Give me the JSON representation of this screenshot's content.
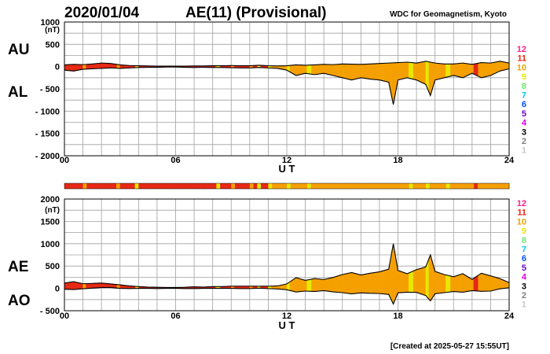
{
  "header": {
    "date": "2020/01/04",
    "title": "AE(11) (Provisional)",
    "org": "WDC for Geomagnetism, Kyoto"
  },
  "footer": {
    "created": "[Created at 2025-05-27 15:55UT]"
  },
  "colors": {
    "grid": "#a0a0a0",
    "bar_default": "#f5a000",
    "counts": {
      "1": "#c8c8c8",
      "2": "#7f7f7f",
      "3": "#000000",
      "4": "#e000e0",
      "5": "#6a00c8",
      "6": "#0050ff",
      "7": "#00c8e8",
      "8": "#6ee66e",
      "9": "#e8e800",
      "10": "#f5a000",
      "11": "#e62814",
      "12": "#ff1e8c"
    }
  },
  "legend_labels": [
    "12",
    "11",
    "10",
    "9",
    "8",
    "7",
    "6",
    "5",
    "4",
    "3",
    "2",
    "1"
  ],
  "chart_data": [
    {
      "id": "au_al",
      "type": "area",
      "side_labels": [
        "AU",
        "AL"
      ],
      "unit": "(nT)",
      "ylim": [
        -2000,
        1000
      ],
      "yticks": [
        1000,
        500,
        0,
        -500,
        -1000,
        -1500,
        -2000
      ],
      "ytick_labels": [
        "1000",
        "500",
        "0",
        "- 500",
        "- 1000",
        "- 1500",
        "- 2000"
      ],
      "xlim": [
        0,
        24
      ],
      "xticks": [
        0,
        6,
        12,
        18,
        24
      ],
      "xtick_labels": [
        "00",
        "06",
        "12",
        "18",
        "24"
      ],
      "xlabel": "U T",
      "grid": true,
      "series": [
        {
          "name": "AU",
          "x": [
            0,
            0.5,
            1,
            1.5,
            2,
            2.5,
            3,
            3.5,
            4,
            4.5,
            5,
            5.5,
            6,
            6.5,
            7,
            7.5,
            8,
            8.5,
            9,
            9.5,
            10,
            10.5,
            11,
            11.5,
            12,
            12.5,
            13,
            13.5,
            14,
            14.5,
            15,
            15.5,
            16,
            16.5,
            17,
            17.5,
            18,
            18.5,
            19,
            19.5,
            20,
            20.5,
            21,
            21.5,
            22,
            22.5,
            23,
            23.5,
            24
          ],
          "values": [
            40,
            50,
            45,
            60,
            80,
            70,
            40,
            25,
            20,
            15,
            10,
            10,
            10,
            10,
            15,
            15,
            20,
            20,
            25,
            20,
            20,
            30,
            20,
            15,
            20,
            40,
            30,
            40,
            50,
            45,
            60,
            55,
            50,
            60,
            70,
            80,
            90,
            100,
            80,
            120,
            80,
            60,
            60,
            80,
            50,
            90,
            80,
            120,
            80
          ]
        },
        {
          "name": "AL",
          "x": [
            0,
            0.5,
            1,
            1.5,
            2,
            2.5,
            3,
            3.5,
            4,
            4.5,
            5,
            5.5,
            6,
            6.5,
            7,
            7.5,
            8,
            8.5,
            9,
            9.5,
            10,
            10.5,
            11,
            11.5,
            12,
            12.5,
            13,
            13.5,
            14,
            14.5,
            15,
            15.5,
            16,
            16.5,
            17,
            17.5,
            17.75,
            18,
            18.5,
            19,
            19.5,
            19.75,
            20,
            20.5,
            21,
            21.5,
            22,
            22.5,
            23,
            23.5,
            24
          ],
          "values": [
            -80,
            -100,
            -60,
            -50,
            -40,
            -30,
            -40,
            -30,
            -20,
            -15,
            -15,
            -10,
            -10,
            -15,
            -20,
            -15,
            -20,
            -20,
            -25,
            -30,
            -30,
            -20,
            -30,
            -40,
            -80,
            -200,
            -150,
            -180,
            -150,
            -200,
            -250,
            -300,
            -250,
            -280,
            -300,
            -350,
            -850,
            -300,
            -250,
            -300,
            -400,
            -650,
            -300,
            -250,
            -200,
            -250,
            -150,
            -250,
            -200,
            -100,
            -50
          ]
        }
      ]
    },
    {
      "id": "ae_ao",
      "type": "area",
      "side_labels": [
        "AE",
        "AO"
      ],
      "unit": "(nT)",
      "ylim": [
        -500,
        2000
      ],
      "yticks": [
        2000,
        1500,
        1000,
        500,
        0,
        -500
      ],
      "ytick_labels": [
        "2000",
        "1500",
        "1000",
        "500",
        "0",
        "- 500"
      ],
      "xlim": [
        0,
        24
      ],
      "xticks": [
        0,
        6,
        12,
        18,
        24
      ],
      "xtick_labels": [
        "00",
        "06",
        "12",
        "18",
        "24"
      ],
      "xlabel": "U T",
      "grid": true,
      "series": [
        {
          "name": "AE",
          "x": [
            0,
            0.5,
            1,
            1.5,
            2,
            2.5,
            3,
            3.5,
            4,
            4.5,
            5,
            5.5,
            6,
            6.5,
            7,
            7.5,
            8,
            8.5,
            9,
            9.5,
            10,
            10.5,
            11,
            11.5,
            12,
            12.5,
            13,
            13.5,
            14,
            14.5,
            15,
            15.5,
            16,
            16.5,
            17,
            17.5,
            17.75,
            18,
            18.5,
            19,
            19.5,
            19.75,
            20,
            20.5,
            21,
            21.5,
            22,
            22.5,
            23,
            23.5,
            24
          ],
          "values": [
            120,
            150,
            105,
            110,
            120,
            100,
            80,
            55,
            40,
            30,
            25,
            20,
            20,
            25,
            35,
            30,
            40,
            40,
            50,
            50,
            50,
            50,
            50,
            55,
            100,
            240,
            180,
            220,
            200,
            245,
            310,
            355,
            300,
            340,
            370,
            430,
            1000,
            400,
            330,
            420,
            480,
            750,
            380,
            310,
            260,
            330,
            200,
            340,
            280,
            220,
            130
          ]
        },
        {
          "name": "AO",
          "x": [
            0,
            0.5,
            1,
            1.5,
            2,
            2.5,
            3,
            3.5,
            4,
            4.5,
            5,
            5.5,
            6,
            6.5,
            7,
            7.5,
            8,
            8.5,
            9,
            9.5,
            10,
            10.5,
            11,
            11.5,
            12,
            12.5,
            13,
            13.5,
            14,
            14.5,
            15,
            15.5,
            16,
            16.5,
            17,
            17.5,
            17.75,
            18,
            18.5,
            19,
            19.5,
            19.75,
            20,
            20.5,
            21,
            21.5,
            22,
            22.5,
            23,
            23.5,
            24
          ],
          "values": [
            -20,
            -25,
            -8,
            5,
            20,
            20,
            0,
            -3,
            0,
            0,
            -3,
            0,
            0,
            -3,
            -3,
            0,
            0,
            0,
            0,
            -5,
            -5,
            5,
            -5,
            -13,
            -30,
            -80,
            -60,
            -70,
            -50,
            -78,
            -95,
            -123,
            -100,
            -110,
            -115,
            -135,
            -350,
            -100,
            -85,
            -90,
            -160,
            -280,
            -120,
            -95,
            -70,
            -85,
            -50,
            -65,
            -60,
            -10,
            15
          ]
        }
      ]
    }
  ],
  "station_bar": {
    "default_count": 10,
    "segments": [
      {
        "from": 0.0,
        "to": 11.0,
        "count": 11
      },
      {
        "from": 1.0,
        "to": 1.2,
        "count": 10
      },
      {
        "from": 2.8,
        "to": 3.0,
        "count": 10
      },
      {
        "from": 3.8,
        "to": 4.0,
        "count": 9
      },
      {
        "from": 8.2,
        "to": 8.4,
        "count": 9
      },
      {
        "from": 9.0,
        "to": 9.2,
        "count": 10
      },
      {
        "from": 10.0,
        "to": 10.2,
        "count": 10
      },
      {
        "from": 10.4,
        "to": 10.6,
        "count": 9
      },
      {
        "from": 11.0,
        "to": 11.2,
        "count": 9
      },
      {
        "from": 12.0,
        "to": 12.2,
        "count": 9
      },
      {
        "from": 13.1,
        "to": 13.3,
        "count": 9
      },
      {
        "from": 18.6,
        "to": 18.8,
        "count": 9
      },
      {
        "from": 19.5,
        "to": 19.7,
        "count": 9
      },
      {
        "from": 20.6,
        "to": 20.8,
        "count": 9
      },
      {
        "from": 22.1,
        "to": 22.3,
        "count": 11
      }
    ]
  }
}
